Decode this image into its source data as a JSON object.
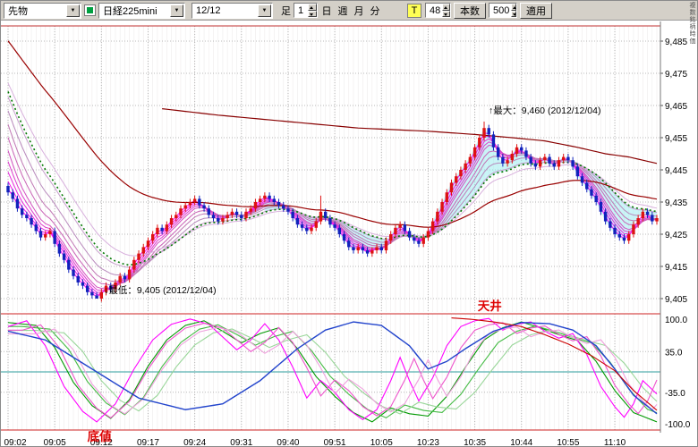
{
  "side_label": "複数銘柄時価",
  "toolbar": {
    "instrument": "先物",
    "symbol": "日経225mini",
    "date": "12/12",
    "bar_type_label": "足",
    "bar_interval": "1",
    "period_buttons": [
      "日",
      "週",
      "月",
      "分"
    ],
    "tick_toggle": "T",
    "param_value": "48",
    "bars_label": "本数",
    "bars_count": "500",
    "apply": "適用"
  },
  "chart_data": {
    "type": "candlestick",
    "symbol": "日経225mini",
    "time_axis": {
      "labels": [
        "09:02",
        "09:05",
        "09:12",
        "09:17",
        "09:24",
        "09:31",
        "09:40",
        "09:51",
        "10:05",
        "10:23",
        "10:35",
        "10:44",
        "10:55",
        "11:10"
      ],
      "bars_per_label": 10
    },
    "price_axis": {
      "labels": [
        "9,485",
        "9,475",
        "9,465",
        "9,455",
        "9,445",
        "9,435",
        "9,425",
        "9,415",
        "9,405"
      ],
      "values": [
        9485,
        9475,
        9465,
        9455,
        9445,
        9435,
        9425,
        9415,
        9405
      ]
    },
    "candle_colors": {
      "up": "#dd1111",
      "down": "#1122bb"
    },
    "closes": [
      9438,
      9436,
      9433,
      9431,
      9430,
      9428,
      9426,
      9424,
      9425,
      9426,
      9422,
      9419,
      9417,
      9414,
      9412,
      9410,
      9409,
      9407,
      9406,
      9405,
      9407,
      9409,
      9408,
      9410,
      9412,
      9411,
      9414,
      9417,
      9419,
      9421,
      9423,
      9425,
      9427,
      9426,
      9428,
      9430,
      9431,
      9433,
      9434,
      9435,
      9436,
      9434,
      9433,
      9431,
      9430,
      9429,
      9430,
      9431,
      9432,
      9431,
      9430,
      9432,
      9433,
      9435,
      9436,
      9437,
      9436,
      9435,
      9434,
      9433,
      9432,
      9430,
      9428,
      9427,
      9426,
      9427,
      9429,
      9432,
      9430,
      9428,
      9427,
      9425,
      9423,
      9421,
      9420,
      9421,
      9420,
      9419,
      9420,
      9421,
      9420,
      9423,
      9425,
      9427,
      9428,
      9426,
      9424,
      9423,
      9422,
      9424,
      9426,
      9429,
      9432,
      9435,
      9438,
      9441,
      9443,
      9445,
      9447,
      9449,
      9452,
      9455,
      9458,
      9456,
      9452,
      9449,
      9447,
      9448,
      9450,
      9452,
      9451,
      9449,
      9447,
      9446,
      9448,
      9449,
      9447,
      9446,
      9448,
      9449,
      9448,
      9446,
      9443,
      9441,
      9439,
      9437,
      9435,
      9432,
      9429,
      9427,
      9425,
      9424,
      9423,
      9425,
      9428,
      9430,
      9432,
      9431,
      9429,
      9430
    ],
    "wick_overrides": {
      "19": {
        "low": 9405
      },
      "55": {
        "high": 9438
      },
      "67": {
        "high": 9437
      },
      "102": {
        "high": 9460
      }
    },
    "overlays": {
      "ribbon": {
        "periods": [
          2,
          3,
          4,
          5,
          6,
          8,
          10,
          13,
          17,
          22
        ],
        "seed_base": 9441,
        "seed_step": 3.8,
        "colors": [
          "#ff00ff",
          "#f513ef",
          "#ea27de",
          "#df3bce",
          "#d44fc0",
          "#ca63b6",
          "#c077b4",
          "#b98abd",
          "#c79dcc",
          "#d8b0dd"
        ]
      },
      "green_ema": {
        "period": 18,
        "seed": 9473,
        "color": "#007700",
        "dash": "2,3"
      },
      "red_ema": {
        "period": 50,
        "seed": 9487,
        "color": "#990000"
      },
      "red_line2": {
        "color": "#880000",
        "points": [
          [
            33,
            9464
          ],
          [
            45,
            9462
          ],
          [
            60,
            9460
          ],
          [
            75,
            9458
          ],
          [
            90,
            9457
          ],
          [
            100,
            9456
          ],
          [
            108,
            9455
          ],
          [
            115,
            9454
          ],
          [
            122,
            9452
          ],
          [
            128,
            9450
          ],
          [
            133,
            9449
          ],
          [
            139,
            9447
          ]
        ]
      },
      "cyan_fill": {
        "color": "rgba(150,235,240,0.5)",
        "from_index": 55
      }
    },
    "annotations": {
      "max": {
        "text": "↑最大：9,460 (2012/12/04)",
        "index": 102,
        "price": 9460
      },
      "min": {
        "text": "↓最低：9,405 (2012/12/04)",
        "index": 19,
        "price": 9405
      },
      "ceiling": {
        "text": "天井",
        "color": "#dd0000",
        "index": 101
      },
      "bottom": {
        "text": "底値",
        "color": "#dd0000",
        "index": 17
      }
    },
    "oscillator": {
      "axis_labels": [
        "100.0",
        "35.0",
        "-35.0",
        "-100.0"
      ],
      "axis_values": [
        100,
        35,
        -35,
        -100
      ],
      "zero_line_color": "#2e9e9e",
      "bound_color": "#cc2222",
      "series": [
        {
          "name": "rci-green-family",
          "color": "#009900",
          "variants": [
            [
              0,
              1.0
            ],
            [
              3,
              0.92
            ],
            [
              6,
              0.84
            ]
          ],
          "variant_colors": [
            "#009900",
            "#44bb44",
            "#99d699"
          ],
          "points": [
            [
              0,
              85
            ],
            [
              6,
              80
            ],
            [
              10,
              42
            ],
            [
              14,
              -18
            ],
            [
              18,
              -58
            ],
            [
              22,
              -80
            ],
            [
              26,
              -48
            ],
            [
              30,
              10
            ],
            [
              34,
              55
            ],
            [
              38,
              80
            ],
            [
              42,
              88
            ],
            [
              46,
              70
            ],
            [
              50,
              50
            ],
            [
              54,
              66
            ],
            [
              58,
              76
            ],
            [
              62,
              40
            ],
            [
              66,
              -8
            ],
            [
              70,
              -42
            ],
            [
              74,
              -70
            ],
            [
              78,
              -86
            ],
            [
              82,
              -62
            ],
            [
              86,
              -72
            ],
            [
              90,
              -76
            ],
            [
              94,
              -42
            ],
            [
              98,
              8
            ],
            [
              102,
              55
            ],
            [
              106,
              76
            ],
            [
              110,
              86
            ],
            [
              114,
              76
            ],
            [
              118,
              64
            ],
            [
              122,
              54
            ],
            [
              126,
              18
            ],
            [
              130,
              -32
            ],
            [
              134,
              -70
            ],
            [
              139,
              -86
            ]
          ]
        },
        {
          "name": "rci-magenta-family",
          "color": "#ff00ff",
          "variants": [
            [
              0,
              1.0
            ],
            [
              3,
              0.92
            ],
            [
              6,
              0.84
            ]
          ],
          "variant_colors": [
            "#ff00ff",
            "#ee55cc",
            "#efa0dd"
          ],
          "points": [
            [
              0,
              78
            ],
            [
              4,
              88
            ],
            [
              8,
              45
            ],
            [
              12,
              -25
            ],
            [
              16,
              -68
            ],
            [
              19,
              -86
            ],
            [
              23,
              -55
            ],
            [
              27,
              5
            ],
            [
              31,
              55
            ],
            [
              35,
              82
            ],
            [
              39,
              91
            ],
            [
              43,
              82
            ],
            [
              46,
              60
            ],
            [
              49,
              38
            ],
            [
              52,
              55
            ],
            [
              55,
              83
            ],
            [
              58,
              55
            ],
            [
              61,
              8
            ],
            [
              64,
              -45
            ],
            [
              67,
              -15
            ],
            [
              70,
              -35
            ],
            [
              73,
              -65
            ],
            [
              76,
              -82
            ],
            [
              79,
              -65
            ],
            [
              82,
              -15
            ],
            [
              84,
              25
            ],
            [
              86,
              -15
            ],
            [
              88,
              -50
            ],
            [
              91,
              -10
            ],
            [
              94,
              45
            ],
            [
              97,
              78
            ],
            [
              100,
              88
            ],
            [
              103,
              92
            ],
            [
              106,
              72
            ],
            [
              109,
              82
            ],
            [
              112,
              86
            ],
            [
              115,
              70
            ],
            [
              118,
              58
            ],
            [
              121,
              66
            ],
            [
              124,
              30
            ],
            [
              127,
              -25
            ],
            [
              130,
              -60
            ],
            [
              132,
              -78
            ],
            [
              134,
              -55
            ],
            [
              136,
              -15
            ],
            [
              139,
              -38
            ]
          ]
        },
        {
          "name": "rci-blue-slow",
          "color": "#2244cc",
          "points": [
            [
              0,
              70
            ],
            [
              8,
              55
            ],
            [
              18,
              5
            ],
            [
              28,
              -45
            ],
            [
              38,
              -65
            ],
            [
              46,
              -55
            ],
            [
              54,
              -15
            ],
            [
              62,
              40
            ],
            [
              68,
              72
            ],
            [
              74,
              86
            ],
            [
              80,
              80
            ],
            [
              86,
              45
            ],
            [
              90,
              5
            ],
            [
              94,
              18
            ],
            [
              98,
              40
            ],
            [
              104,
              70
            ],
            [
              110,
              85
            ],
            [
              116,
              83
            ],
            [
              121,
              72
            ],
            [
              126,
              45
            ],
            [
              130,
              5
            ],
            [
              134,
              -40
            ],
            [
              139,
              -72
            ]
          ]
        },
        {
          "name": "signal-red",
          "color": "#cc0000",
          "points": [
            [
              95,
              93
            ],
            [
              100,
              90
            ],
            [
              105,
              85
            ],
            [
              110,
              78
            ],
            [
              115,
              64
            ],
            [
              120,
              48
            ],
            [
              125,
              28
            ],
            [
              130,
              2
            ],
            [
              134,
              -32
            ],
            [
              139,
              -66
            ]
          ]
        }
      ]
    }
  }
}
